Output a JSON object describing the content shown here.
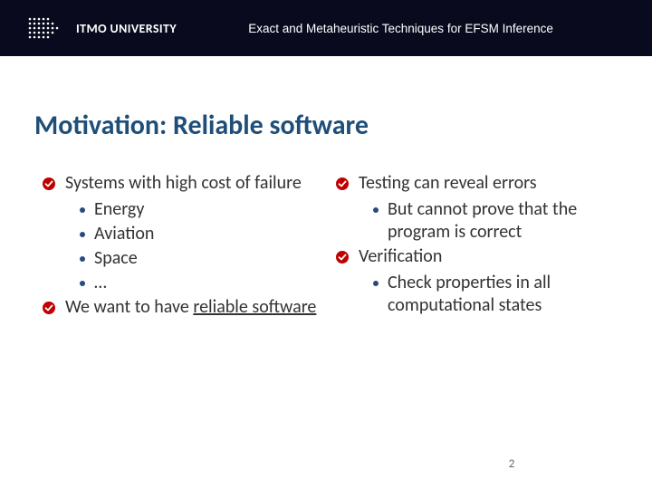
{
  "colors": {
    "header_bg": "#0a0a1f",
    "title_color": "#1f4e79",
    "check_color": "#c00000",
    "bullet_color": "#2a4a7a",
    "text_color": "#333333",
    "pagenum_color": "#666666",
    "bg": "#ffffff"
  },
  "typography": {
    "title_fontsize": 30,
    "body_fontsize": 20,
    "header_fontsize": 13.5,
    "logo_fontsize": 14
  },
  "header": {
    "logo_text": "ITMO UNIVERSITY",
    "presentation_title": "Exact and Metaheuristic Techniques for EFSM Inference"
  },
  "slide": {
    "title": "Motivation: Reliable software",
    "page_number": "2",
    "left_column": [
      {
        "text": "Systems with high cost of failure",
        "sub": [
          "Energy",
          "Aviation",
          "Space",
          "…"
        ]
      },
      {
        "text_html": "We want to have <span class='underline'>reliable software</span>",
        "text": "We want to have reliable software",
        "sub": []
      }
    ],
    "right_column": [
      {
        "text": "Testing can reveal errors",
        "sub": [
          "But cannot prove that the program is correct"
        ]
      },
      {
        "text": "Verification",
        "sub": [
          "Check properties in all computational states"
        ]
      }
    ]
  }
}
